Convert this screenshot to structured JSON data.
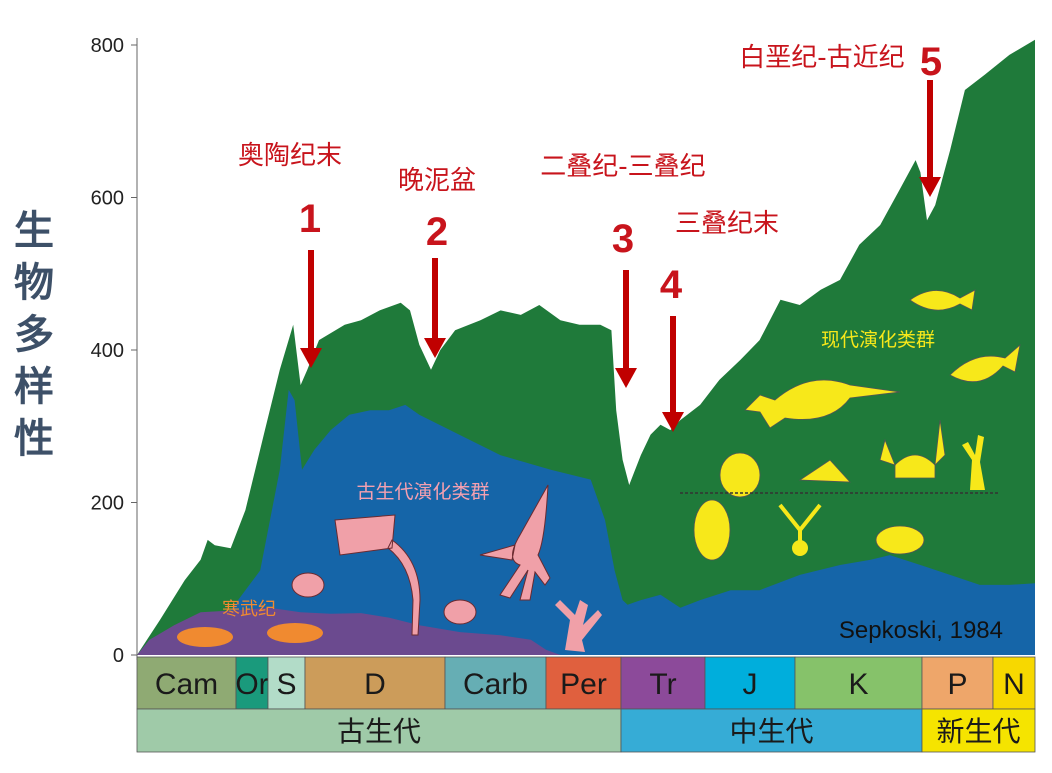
{
  "chart_data": {
    "type": "area",
    "ylabel": "生物多样性",
    "ylim": [
      0,
      810
    ],
    "yticks": [
      0,
      200,
      400,
      600,
      800
    ],
    "grid": false,
    "x_units": "Ma (geologic time, shown by period bar)",
    "periods": [
      "Cam",
      "Or",
      "S",
      "D",
      "Carb",
      "Per",
      "Tr",
      "J",
      "K",
      "P",
      "N"
    ],
    "period_colors": [
      "#8faa73",
      "#1a9a7c",
      "#b2dcc8",
      "#cc9c5a",
      "#66aeb4",
      "#e0603e",
      "#8c4a9a",
      "#00aedc",
      "#86c26a",
      "#eea66a",
      "#f7d800"
    ],
    "eras": [
      "古生代",
      "中生代",
      "新生代"
    ],
    "era_colors": [
      "#9fcaa8",
      "#36acd6",
      "#f5e400"
    ],
    "series": [
      {
        "name": "现代演化类群",
        "color": "#1f7a3a",
        "points": [
          [
            541,
            0
          ],
          [
            528,
            46
          ],
          [
            514,
            98
          ],
          [
            505,
            125
          ],
          [
            501,
            151
          ],
          [
            497,
            144
          ],
          [
            488,
            140
          ],
          [
            473,
            190
          ],
          [
            448,
            295
          ],
          [
            436,
            374
          ],
          [
            427,
            433
          ],
          [
            422,
            354
          ],
          [
            418,
            374
          ],
          [
            413,
            413
          ],
          [
            402,
            433
          ],
          [
            395,
            439
          ],
          [
            387,
            452
          ],
          [
            378,
            462
          ],
          [
            374,
            452
          ],
          [
            370,
            407
          ],
          [
            365,
            374
          ],
          [
            361,
            400
          ],
          [
            353,
            426
          ],
          [
            338,
            439
          ],
          [
            326,
            452
          ],
          [
            314,
            446
          ],
          [
            303,
            459
          ],
          [
            290,
            439
          ],
          [
            278,
            433
          ],
          [
            265,
            433
          ],
          [
            258,
            426
          ],
          [
            255,
            321
          ],
          [
            251,
            256
          ],
          [
            247,
            223
          ],
          [
            240,
            262
          ],
          [
            234,
            289
          ],
          [
            228,
            302
          ],
          [
            222,
            295
          ],
          [
            216,
            308
          ],
          [
            204,
            328
          ],
          [
            192,
            361
          ],
          [
            179,
            387
          ],
          [
            167,
            413
          ],
          [
            154,
            466
          ],
          [
            142,
            459
          ],
          [
            129,
            479
          ],
          [
            117,
            492
          ],
          [
            105,
            538
          ],
          [
            92,
            564
          ],
          [
            80,
            610
          ],
          [
            70,
            649
          ],
          [
            67,
            633
          ],
          [
            63,
            570
          ],
          [
            58,
            590
          ],
          [
            49,
            662
          ],
          [
            40,
            741
          ],
          [
            28,
            761
          ],
          [
            14,
            787
          ],
          [
            0,
            807
          ]
        ]
      },
      {
        "name": "古生代演化类群",
        "color": "#1565a8",
        "points": [
          [
            541,
            0
          ],
          [
            522,
            33
          ],
          [
            488,
            59
          ],
          [
            454,
            111
          ],
          [
            436,
            243
          ],
          [
            430,
            348
          ],
          [
            426,
            334
          ],
          [
            421,
            243
          ],
          [
            415,
            269
          ],
          [
            408,
            295
          ],
          [
            400,
            315
          ],
          [
            391,
            321
          ],
          [
            383,
            321
          ],
          [
            376,
            328
          ],
          [
            370,
            315
          ],
          [
            356,
            295
          ],
          [
            326,
            262
          ],
          [
            296,
            243
          ],
          [
            271,
            230
          ],
          [
            262,
            177
          ],
          [
            256,
            111
          ],
          [
            251,
            72
          ],
          [
            248,
            66
          ],
          [
            240,
            72
          ],
          [
            228,
            79
          ],
          [
            216,
            62
          ],
          [
            204,
            72
          ],
          [
            185,
            85
          ],
          [
            167,
            85
          ],
          [
            142,
            105
          ],
          [
            117,
            118
          ],
          [
            98,
            125
          ],
          [
            86,
            131
          ],
          [
            67,
            118
          ],
          [
            49,
            105
          ],
          [
            31,
            92
          ],
          [
            14,
            92
          ],
          [
            0,
            94
          ]
        ]
      },
      {
        "name": "寒武纪",
        "color": "#6b4a8f",
        "points": [
          [
            541,
            0
          ],
          [
            534,
            20
          ],
          [
            520,
            39
          ],
          [
            505,
            56
          ],
          [
            480,
            59
          ],
          [
            443,
            62
          ],
          [
            422,
            56
          ],
          [
            408,
            54
          ],
          [
            395,
            55
          ],
          [
            383,
            49
          ],
          [
            370,
            39
          ],
          [
            350,
            30
          ],
          [
            326,
            26
          ],
          [
            308,
            20
          ],
          [
            299,
            7
          ],
          [
            290,
            0
          ]
        ]
      }
    ],
    "annotations": [
      {
        "number": "1",
        "label": "奥陶纪末"
      },
      {
        "number": "2",
        "label": "晚泥盆"
      },
      {
        "number": "3",
        "label": "二叠纪-三叠纪"
      },
      {
        "number": "4",
        "label": "三叠纪末"
      },
      {
        "number": "5",
        "label": "白垩纪-古近纪"
      }
    ],
    "source": "Sepkoski, 1984",
    "arrow_color": "#c00000"
  }
}
